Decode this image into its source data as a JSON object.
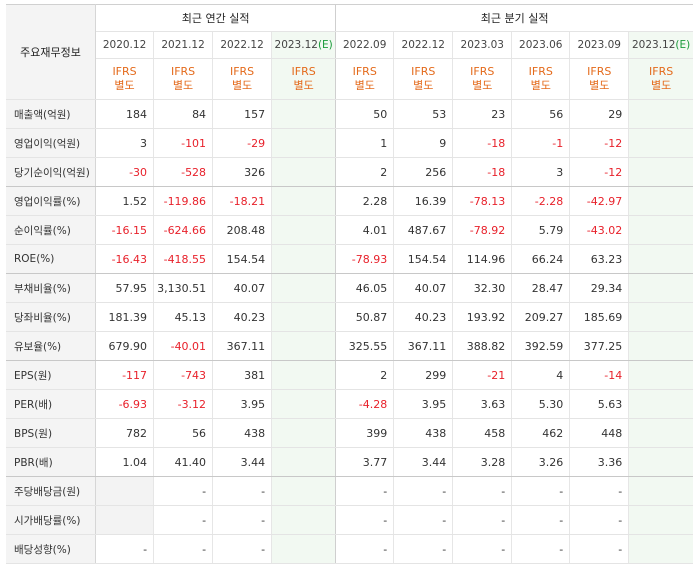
{
  "corner_label": "주요재무정보",
  "annual_header": "최근 연간 실적",
  "quarter_header": "최근 분기 실적",
  "annual_dates": [
    "2020.12",
    "2021.12",
    "2022.12",
    "2023.12"
  ],
  "quarter_dates": [
    "2022.09",
    "2022.12",
    "2023.03",
    "2023.06",
    "2023.09",
    "2023.12"
  ],
  "estimate_mark": "(E)",
  "ifrs_top": "IFRS",
  "ifrs_bottom": "별도",
  "rows": [
    {
      "label": "매출액(억원)",
      "values": [
        "184",
        "84",
        "157",
        "",
        "50",
        "53",
        "23",
        "56",
        "29",
        ""
      ]
    },
    {
      "label": "영업이익(억원)",
      "values": [
        "3",
        "-101",
        "-29",
        "",
        "1",
        "9",
        "-18",
        "-1",
        "-12",
        ""
      ]
    },
    {
      "label": "당기순이익(억원)",
      "values": [
        "-30",
        "-528",
        "326",
        "",
        "2",
        "256",
        "-18",
        "3",
        "-12",
        ""
      ]
    },
    {
      "label": "영업이익률(%)",
      "values": [
        "1.52",
        "-119.86",
        "-18.21",
        "",
        "2.28",
        "16.39",
        "-78.13",
        "-2.28",
        "-42.97",
        ""
      ]
    },
    {
      "label": "순이익률(%)",
      "values": [
        "-16.15",
        "-624.66",
        "208.48",
        "",
        "4.01",
        "487.67",
        "-78.92",
        "5.79",
        "-43.02",
        ""
      ]
    },
    {
      "label": "ROE(%)",
      "values": [
        "-16.43",
        "-418.55",
        "154.54",
        "",
        "-78.93",
        "154.54",
        "114.96",
        "66.24",
        "63.23",
        ""
      ]
    },
    {
      "label": "부채비율(%)",
      "values": [
        "57.95",
        "3,130.51",
        "40.07",
        "",
        "46.05",
        "40.07",
        "32.30",
        "28.47",
        "29.34",
        ""
      ]
    },
    {
      "label": "당좌비율(%)",
      "values": [
        "181.39",
        "45.13",
        "40.23",
        "",
        "50.87",
        "40.23",
        "193.92",
        "209.27",
        "185.69",
        ""
      ]
    },
    {
      "label": "유보율(%)",
      "values": [
        "679.90",
        "-40.01",
        "367.11",
        "",
        "325.55",
        "367.11",
        "388.82",
        "392.59",
        "377.25",
        ""
      ]
    },
    {
      "label": "EPS(원)",
      "values": [
        "-117",
        "-743",
        "381",
        "",
        "2",
        "299",
        "-21",
        "4",
        "-14",
        ""
      ]
    },
    {
      "label": "PER(배)",
      "values": [
        "-6.93",
        "-3.12",
        "3.95",
        "",
        "-4.28",
        "3.95",
        "3.63",
        "5.30",
        "5.63",
        ""
      ]
    },
    {
      "label": "BPS(원)",
      "values": [
        "782",
        "56",
        "438",
        "",
        "399",
        "438",
        "458",
        "462",
        "448",
        ""
      ]
    },
    {
      "label": "PBR(배)",
      "values": [
        "1.04",
        "41.40",
        "3.44",
        "",
        "3.77",
        "3.44",
        "3.28",
        "3.26",
        "3.36",
        ""
      ]
    },
    {
      "label": "주당배당금(원)",
      "values": [
        "",
        "-",
        "-",
        "",
        "-",
        "-",
        "-",
        "-",
        "-",
        ""
      ]
    },
    {
      "label": "시가배당률(%)",
      "values": [
        "",
        "-",
        "-",
        "",
        "-",
        "-",
        "-",
        "-",
        "-",
        ""
      ]
    },
    {
      "label": "배당성향(%)",
      "values": [
        "-",
        "-",
        "-",
        "",
        "-",
        "-",
        "-",
        "-",
        "-",
        ""
      ]
    }
  ],
  "colors": {
    "negative": "#e8212b",
    "ifrs": "#e46a1b",
    "estimate_mark": "#1a9b3a",
    "estimate_bg": "#f2f9f2"
  }
}
